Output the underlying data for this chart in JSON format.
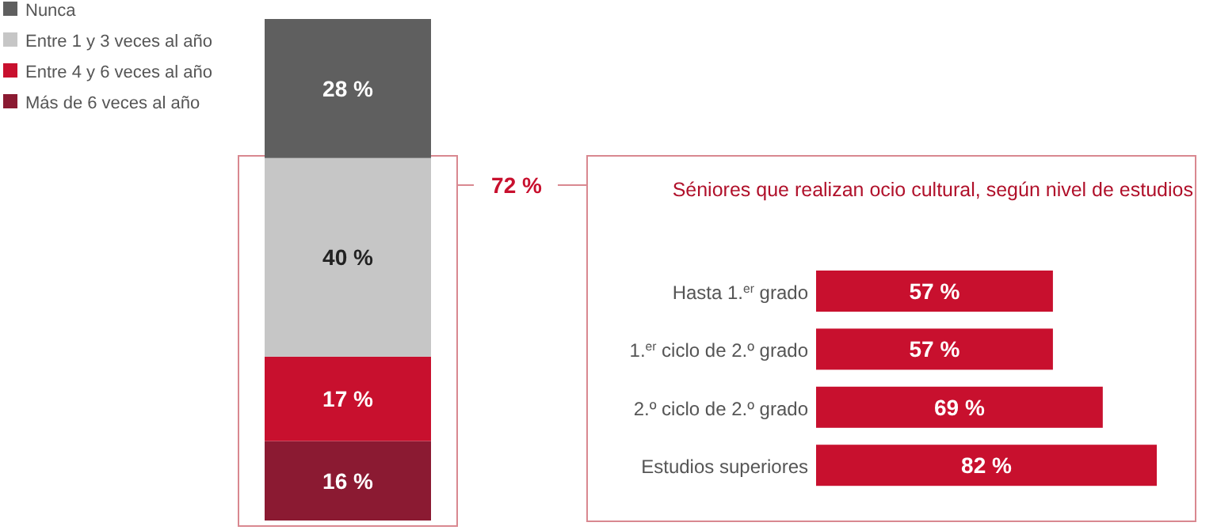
{
  "chart_data": [
    {
      "type": "bar",
      "stacked": true,
      "categories": [
        null
      ],
      "legend": "top left",
      "annotations": [
        "72 %"
      ],
      "series": [
        {
          "name": "Más de 6 veces al año",
          "color": "#8b1a32",
          "values": [
            16
          ],
          "value_labels": [
            "16 %"
          ]
        },
        {
          "name": "Entre 4 y 6 veces al año",
          "color": "#c8102e",
          "values": [
            17
          ],
          "value_labels": [
            "17 %"
          ]
        },
        {
          "name": "Entre 1 y 3 veces al año",
          "color": "#c6c6c6",
          "values": [
            40
          ],
          "value_labels": [
            "40 %"
          ]
        },
        {
          "name": "Nunca",
          "color": "#5f5f5f",
          "values": [
            28
          ],
          "value_labels": [
            "28 %"
          ]
        }
      ]
    },
    {
      "type": "bar",
      "orientation": "horizontal",
      "title": "Séniores que realizan ocio cultural, según nivel de estudios",
      "categories": [
        "Hasta 1.$^{er}$ grado",
        "1.$^{er}$ ciclo de 2.º grado",
        "2.º ciclo de 2.º grado",
        "Estudios superiores"
      ],
      "values": [
        57,
        57,
        69,
        82
      ],
      "value_labels": [
        "57 %",
        "57 %",
        "69 %",
        "82 %"
      ],
      "color": "#c8102e"
    }
  ]
}
